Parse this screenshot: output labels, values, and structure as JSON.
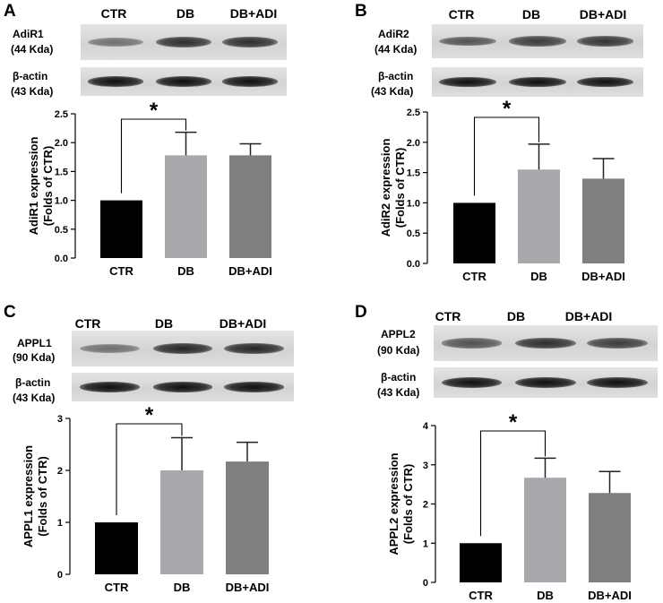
{
  "panels": [
    {
      "letter": "A",
      "lanes": [
        "CTR",
        "DB",
        "DB+ADI"
      ],
      "blot_labels": [
        "AdiR1",
        "(44 Kda)",
        "β-actin",
        "(43 Kda)"
      ],
      "band_intensity": {
        "target": [
          0.35,
          0.8,
          0.8
        ],
        "actin": [
          1,
          1,
          1
        ]
      },
      "significance": "*"
    },
    {
      "letter": "B",
      "lanes": [
        "CTR",
        "DB",
        "DB+ADI"
      ],
      "blot_labels": [
        "AdiR2",
        "(44 Kda)",
        "β-actin",
        "(43 Kda)"
      ],
      "band_intensity": {
        "target": [
          0.55,
          0.7,
          0.75
        ],
        "actin": [
          1,
          1,
          1
        ]
      },
      "significance": "*"
    },
    {
      "letter": "C",
      "lanes": [
        "CTR",
        "DB",
        "DB+ADI"
      ],
      "blot_labels": [
        "APPL1",
        "(90 Kda)",
        "β-actin",
        "(43 Kda)"
      ],
      "band_intensity": {
        "target": [
          0.35,
          0.85,
          0.85
        ],
        "actin": [
          1,
          1,
          1
        ]
      },
      "significance": "*"
    },
    {
      "letter": "D",
      "lanes": [
        "CTR",
        "DB",
        "DB+ADI"
      ],
      "blot_labels": [
        "APPL2",
        "(90 Kda)",
        "β-actin",
        "(43 Kda)"
      ],
      "band_intensity": {
        "target": [
          0.55,
          0.8,
          0.7
        ],
        "actin": [
          1,
          1,
          1
        ]
      },
      "significance": "*"
    }
  ],
  "chart_data": [
    {
      "type": "bar",
      "categories": [
        "CTR",
        "DB",
        "DB+ADI"
      ],
      "values": [
        1.0,
        1.78,
        1.78
      ],
      "errors": [
        0,
        0.4,
        0.2
      ],
      "ylabel": "AdiR1 expression",
      "ylabel2": "(Folds of CTR)",
      "ylim": [
        0,
        2.5
      ],
      "yticks": [
        "0.0",
        "0.5",
        "1.0",
        "1.5",
        "2.0",
        "2.5"
      ],
      "colors": [
        "#000000",
        "#a8a8ad",
        "#7f7f7f"
      ]
    },
    {
      "type": "bar",
      "categories": [
        "CTR",
        "DB",
        "DB+ADI"
      ],
      "values": [
        1.0,
        1.55,
        1.4
      ],
      "errors": [
        0,
        0.42,
        0.33
      ],
      "ylabel": "AdiR2 expression",
      "ylabel2": "(Folds of CTR)",
      "ylim": [
        0,
        2.5
      ],
      "yticks": [
        "0.0",
        "0.5",
        "1.0",
        "1.5",
        "2.0",
        "2.5"
      ],
      "colors": [
        "#000000",
        "#a8a8ad",
        "#7f7f7f"
      ]
    },
    {
      "type": "bar",
      "categories": [
        "CTR",
        "DB",
        "DB+ADI"
      ],
      "values": [
        1.0,
        2.0,
        2.17
      ],
      "errors": [
        0,
        0.63,
        0.37
      ],
      "ylabel": "APPL1 expression",
      "ylabel2": "(Folds of CTR)",
      "ylim": [
        0,
        3
      ],
      "yticks": [
        "0",
        "1",
        "2",
        "3"
      ],
      "colors": [
        "#000000",
        "#a8a8ad",
        "#7f7f7f"
      ]
    },
    {
      "type": "bar",
      "categories": [
        "CTR",
        "DB",
        "DB+ADI"
      ],
      "values": [
        1.0,
        2.67,
        2.28
      ],
      "errors": [
        0,
        0.5,
        0.55
      ],
      "ylabel": "APPL2 expression",
      "ylabel2": "(Folds of CTR)",
      "ylim": [
        0,
        4
      ],
      "yticks": [
        "0",
        "1",
        "2",
        "3",
        "4"
      ],
      "colors": [
        "#000000",
        "#a8a8ad",
        "#7f7f7f"
      ]
    }
  ]
}
